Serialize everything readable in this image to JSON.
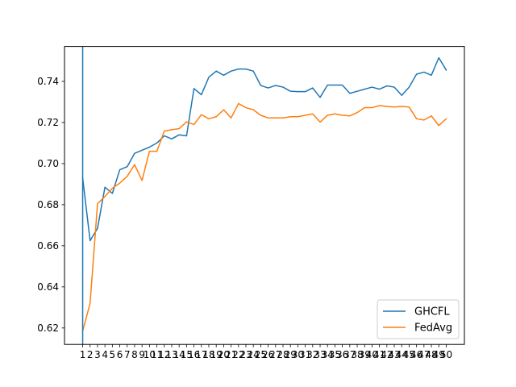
{
  "chart_data": {
    "type": "line",
    "title": "",
    "xlabel": "",
    "ylabel": "",
    "x": [
      1,
      2,
      3,
      4,
      5,
      6,
      7,
      8,
      9,
      10,
      11,
      12,
      13,
      14,
      15,
      16,
      17,
      18,
      19,
      20,
      21,
      22,
      23,
      24,
      25,
      26,
      27,
      28,
      29,
      30,
      31,
      32,
      33,
      34,
      35,
      36,
      37,
      38,
      39,
      40,
      41,
      42,
      43,
      44,
      45,
      46,
      47,
      48,
      49,
      50
    ],
    "ylim": [
      0.612,
      0.757
    ],
    "xlim": [
      -1.45,
      52.45
    ],
    "yticks": [
      "0.62",
      "0.64",
      "0.66",
      "0.68",
      "0.70",
      "0.72",
      "0.74"
    ],
    "legend_position": "lower-right",
    "series": [
      {
        "name": "GHCFL",
        "color": "#1f77b4",
        "values": [
          0.693,
          0.6625,
          0.6685,
          0.6885,
          0.6855,
          0.697,
          0.6985,
          0.705,
          0.7065,
          0.708,
          0.71,
          0.7135,
          0.712,
          0.714,
          0.7135,
          0.7365,
          0.7335,
          0.742,
          0.745,
          0.743,
          0.745,
          0.746,
          0.746,
          0.745,
          0.738,
          0.7368,
          0.738,
          0.7372,
          0.7352,
          0.735,
          0.735,
          0.7368,
          0.7322,
          0.7382,
          0.7382,
          0.7382,
          0.7342,
          0.7352,
          0.7362,
          0.7372,
          0.7362,
          0.7378,
          0.7372,
          0.7332,
          0.7372,
          0.7435,
          0.7445,
          0.743,
          0.7515,
          0.7455
        ]
      },
      {
        "name": "FedAvg",
        "color": "#ff7f0e",
        "values": [
          0.6185,
          0.632,
          0.6805,
          0.684,
          0.688,
          0.6905,
          0.6938,
          0.6995,
          0.6918,
          0.706,
          0.706,
          0.7158,
          0.7165,
          0.717,
          0.7203,
          0.719,
          0.7238,
          0.7218,
          0.7228,
          0.7262,
          0.7222,
          0.7292,
          0.7272,
          0.7262,
          0.7235,
          0.7222,
          0.7222,
          0.7222,
          0.7228,
          0.7228,
          0.7235,
          0.7242,
          0.7202,
          0.7235,
          0.7242,
          0.7235,
          0.7232,
          0.7248,
          0.7272,
          0.7272,
          0.7282,
          0.7278,
          0.7275,
          0.7278,
          0.7275,
          0.7218,
          0.7212,
          0.7232,
          0.7185,
          0.7218
        ]
      }
    ]
  }
}
